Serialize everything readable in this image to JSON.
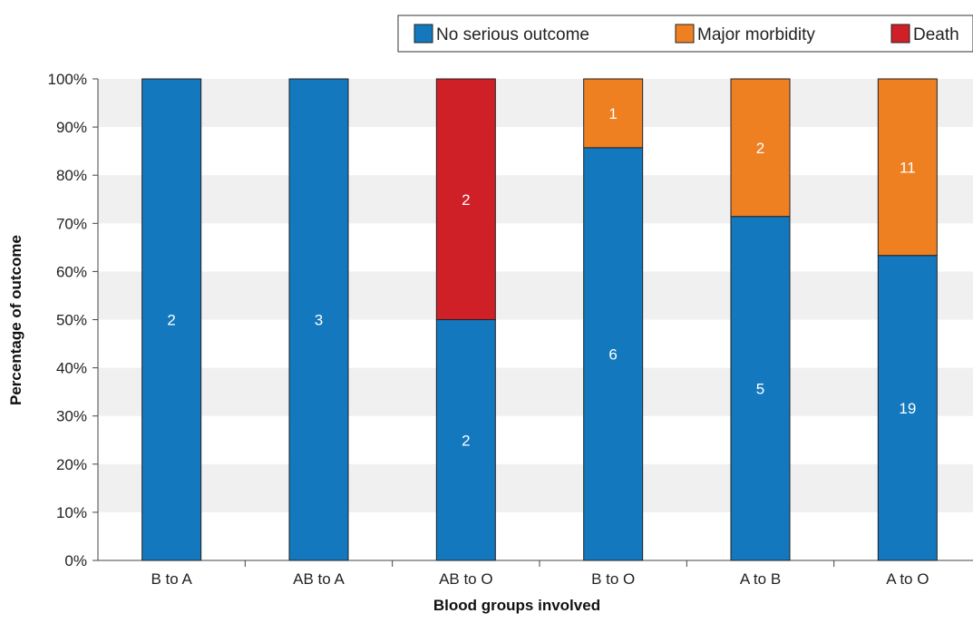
{
  "chart_data": {
    "type": "bar",
    "stacked": true,
    "percent": true,
    "categories": [
      "B to A",
      "AB to A",
      "AB to O",
      "B to O",
      "A to B",
      "A to O"
    ],
    "series": [
      {
        "name": "No serious outcome",
        "color": "#1378bd",
        "values": [
          2,
          3,
          2,
          6,
          5,
          19
        ]
      },
      {
        "name": "Major morbidity",
        "color": "#ee8022",
        "values": [
          0,
          0,
          0,
          1,
          2,
          11
        ]
      },
      {
        "name": "Death",
        "color": "#d02027",
        "values": [
          0,
          0,
          2,
          0,
          0,
          0
        ]
      }
    ],
    "xlabel": "Blood groups involved",
    "ylabel": "Percentage of outcome",
    "ylim": [
      0,
      100
    ],
    "yticks": [
      "0%",
      "10%",
      "20%",
      "30%",
      "40%",
      "50%",
      "60%",
      "70%",
      "80%",
      "90%",
      "100%"
    ],
    "grid": "alternating horizontal bands",
    "legend_position": "top-right"
  }
}
